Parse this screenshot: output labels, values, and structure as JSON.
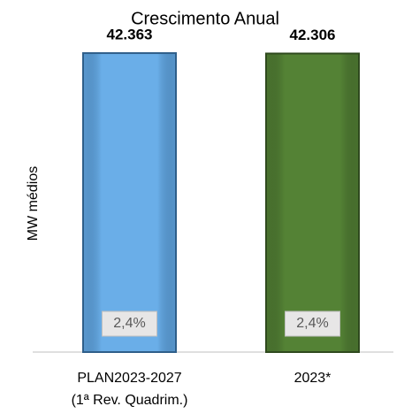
{
  "chart_data": {
    "type": "bar",
    "title": "Crescimento Anual",
    "ylabel": "MW médios",
    "categories": [
      [
        "PLAN2023-2027",
        "(1ª Rev. Quadrim.)"
      ],
      [
        "2023*"
      ]
    ],
    "values": [
      42363,
      42306
    ],
    "value_labels": [
      "42.363",
      "42.306"
    ],
    "annotations": [
      "2,4%",
      "2,4%"
    ],
    "colors": [
      "#6aaee8",
      "#548235"
    ],
    "edge_colors": [
      "#2f5f8a",
      "#2f4a1e"
    ],
    "ylim": [
      0,
      45000
    ]
  }
}
